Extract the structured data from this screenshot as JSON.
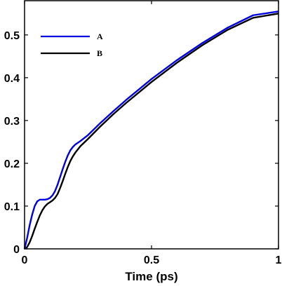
{
  "chart_data": {
    "type": "line",
    "title": "",
    "xlabel": "Time (ps)",
    "ylabel": "",
    "xlim": [
      0,
      1
    ],
    "ylim": [
      0,
      0.58
    ],
    "xticks": [
      0,
      0.5,
      1
    ],
    "xtick_labels": [
      "0",
      "0.5",
      "1"
    ],
    "yticks": [
      0,
      0.1,
      0.2,
      0.3,
      0.4,
      0.5
    ],
    "ytick_labels": [
      "0",
      "0.1",
      "0.2",
      "0.3",
      "0.4",
      "0.5"
    ],
    "grid": false,
    "legend_position": "top-left",
    "series": [
      {
        "name": "A",
        "color": "#0000e0",
        "x": [
          0,
          0.01,
          0.02,
          0.03,
          0.04,
          0.05,
          0.06,
          0.07,
          0.08,
          0.09,
          0.1,
          0.11,
          0.12,
          0.13,
          0.14,
          0.15,
          0.16,
          0.17,
          0.18,
          0.19,
          0.2,
          0.22,
          0.25,
          0.3,
          0.35,
          0.4,
          0.5,
          0.6,
          0.7,
          0.8,
          0.9,
          1.0
        ],
        "y": [
          0,
          0.025,
          0.055,
          0.08,
          0.1,
          0.111,
          0.115,
          0.115,
          0.115,
          0.116,
          0.119,
          0.125,
          0.135,
          0.15,
          0.168,
          0.186,
          0.203,
          0.218,
          0.23,
          0.238,
          0.244,
          0.252,
          0.266,
          0.295,
          0.322,
          0.348,
          0.397,
          0.441,
          0.481,
          0.517,
          0.546,
          0.555
        ]
      },
      {
        "name": "B",
        "color": "#000000",
        "x": [
          0,
          0.01,
          0.02,
          0.03,
          0.04,
          0.05,
          0.06,
          0.07,
          0.08,
          0.09,
          0.1,
          0.11,
          0.12,
          0.13,
          0.14,
          0.15,
          0.16,
          0.17,
          0.18,
          0.19,
          0.2,
          0.22,
          0.25,
          0.3,
          0.35,
          0.4,
          0.5,
          0.6,
          0.7,
          0.8,
          0.9,
          1.0
        ],
        "y": [
          0,
          0.004,
          0.015,
          0.03,
          0.047,
          0.063,
          0.078,
          0.09,
          0.099,
          0.105,
          0.109,
          0.113,
          0.119,
          0.128,
          0.142,
          0.158,
          0.175,
          0.191,
          0.205,
          0.216,
          0.225,
          0.24,
          0.257,
          0.287,
          0.315,
          0.341,
          0.39,
          0.435,
          0.476,
          0.512,
          0.54,
          0.55
        ]
      }
    ]
  }
}
